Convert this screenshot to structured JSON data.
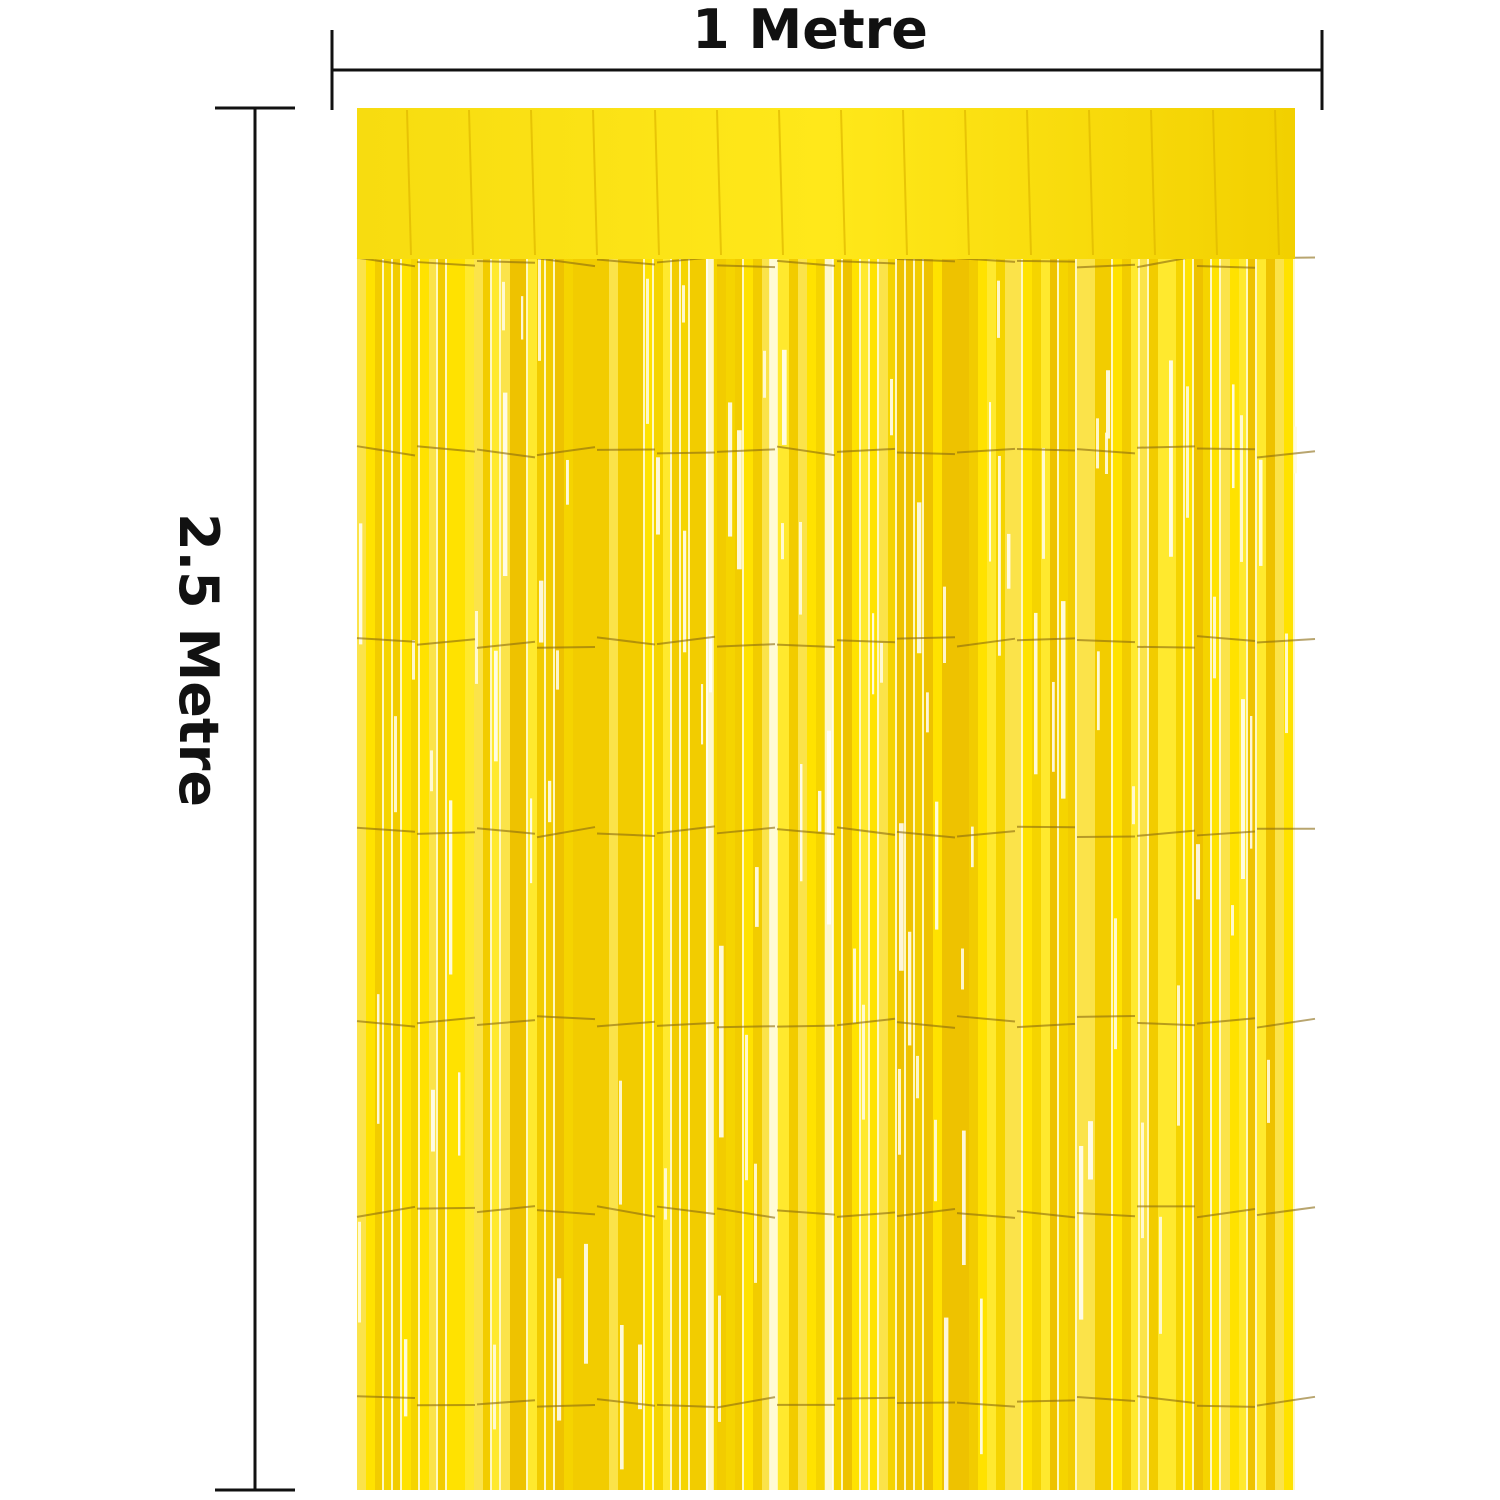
{
  "labels": {
    "width": "1 Metre",
    "height": "2.5 Metre"
  }
}
